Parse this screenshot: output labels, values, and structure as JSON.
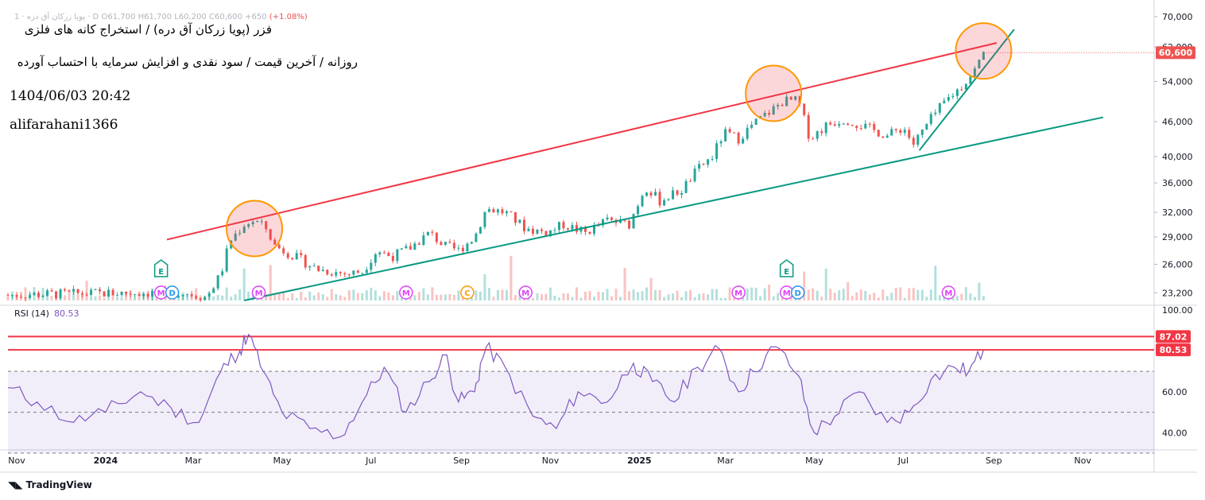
{
  "header": {
    "ticker_line": "1 · پویا زرکان آق دره · D",
    "ohlc": "O61,700  H61,700  L60,200  C60,600  +650",
    "change": "(+1.08%)",
    "title": "فزر (پویا زرکان آق دره) / استخراج کانه های فلزی",
    "subtitle": "روزانه / آخرین قیمت / سود نقدی و افزایش سرمایه با احتساب آورده",
    "datetime": "1404/06/03 20:42",
    "author": "alifarahani1366"
  },
  "rsi": {
    "label": "RSI (14)",
    "value": "80.53"
  },
  "branding": {
    "logo_text": "TradingView"
  },
  "colors": {
    "up": "#26a69a",
    "down": "#ef5350",
    "rsi": "#7e57c2",
    "resistance": "#f23645",
    "support": "#089981",
    "circle": "#ff9800"
  },
  "chart_data": [
    {
      "type": "candlestick",
      "title": "فزر (پویا زرکان آق دره) / استخراج کانه های فلزی",
      "x_axis": {
        "type": "date",
        "ticks": [
          "Nov",
          "2024",
          "Mar",
          "May",
          "Jul",
          "Sep",
          "Nov",
          "2025",
          "Mar",
          "May",
          "Jul",
          "Sep",
          "Nov"
        ],
        "range": [
          "2023-10-26",
          "2025-12-20"
        ]
      },
      "y_axis": {
        "scale": "log",
        "ticks": [
          23200,
          26000,
          29000,
          32000,
          36000,
          40000,
          46000,
          54000,
          62000,
          70000
        ],
        "range": [
          22500,
          72000
        ]
      },
      "last_price": 60600,
      "last_price_label": "60,600",
      "ohlc_last": {
        "open": 61700,
        "high": 61700,
        "low": 60200,
        "close": 60600,
        "change": 650,
        "change_pct": 1.08
      },
      "close_path": [
        [
          "2023-10-26",
          23000
        ],
        [
          "2023-12-01",
          23100
        ],
        [
          "2024-01-15",
          23200
        ],
        [
          "2024-02-25",
          23200
        ],
        [
          "2024-03-10",
          22800
        ],
        [
          "2024-03-20",
          25000
        ],
        [
          "2024-03-26",
          28500
        ],
        [
          "2024-04-05",
          30500
        ],
        [
          "2024-04-12",
          31000
        ],
        [
          "2024-04-20",
          30000
        ],
        [
          "2024-04-26",
          28000
        ],
        [
          "2024-05-10",
          26800
        ],
        [
          "2024-05-25",
          25500
        ],
        [
          "2024-06-15",
          25000
        ],
        [
          "2024-06-25",
          25300
        ],
        [
          "2024-07-05",
          27500
        ],
        [
          "2024-07-15",
          26800
        ],
        [
          "2024-07-28",
          27800
        ],
        [
          "2024-08-10",
          29500
        ],
        [
          "2024-08-20",
          28000
        ],
        [
          "2024-08-30",
          27500
        ],
        [
          "2024-09-10",
          29000
        ],
        [
          "2024-09-18",
          32500
        ],
        [
          "2024-10-01",
          32000
        ],
        [
          "2024-10-15",
          30000
        ],
        [
          "2024-10-30",
          29500
        ],
        [
          "2024-11-10",
          30500
        ],
        [
          "2024-11-25",
          29500
        ],
        [
          "2024-12-10",
          31000
        ],
        [
          "2024-12-25",
          30500
        ],
        [
          "2025-01-05",
          35500
        ],
        [
          "2025-01-15",
          33500
        ],
        [
          "2025-01-30",
          35000
        ],
        [
          "2025-02-10",
          38000
        ],
        [
          "2025-02-20",
          40000
        ],
        [
          "2025-02-28",
          44000
        ],
        [
          "2025-03-10",
          43000
        ],
        [
          "2025-03-20",
          45500
        ],
        [
          "2025-04-01",
          48000
        ],
        [
          "2025-04-10",
          50000
        ],
        [
          "2025-04-20",
          50000
        ],
        [
          "2025-04-28",
          43000
        ],
        [
          "2025-05-10",
          45500
        ],
        [
          "2025-05-22",
          46500
        ],
        [
          "2025-06-05",
          45000
        ],
        [
          "2025-06-20",
          43500
        ],
        [
          "2025-07-01",
          45000
        ],
        [
          "2025-07-08",
          42000
        ],
        [
          "2025-07-20",
          46500
        ],
        [
          "2025-07-30",
          50000
        ],
        [
          "2025-08-10",
          53000
        ],
        [
          "2025-08-20",
          57000
        ],
        [
          "2025-08-25",
          60600
        ]
      ],
      "volume_scale": "relative",
      "trendlines": [
        {
          "name": "resistance",
          "points": [
            [
              "2024-02-12",
              28700
            ],
            [
              "2025-09-03",
              63000
            ]
          ]
        },
        {
          "name": "support",
          "points": [
            [
              "2024-04-05",
              22500
            ],
            [
              "2025-11-15",
              46800
            ]
          ]
        },
        {
          "name": "short-term support",
          "points": [
            [
              "2025-07-12",
              41000
            ],
            [
              "2025-09-15",
              66500
            ]
          ]
        }
      ],
      "highlight_circles": [
        {
          "date": "2024-04-12",
          "price": 30000
        },
        {
          "date": "2025-04-03",
          "price": 51500
        },
        {
          "date": "2025-08-25",
          "price": 61000
        }
      ],
      "event_markers": [
        {
          "date": "2024-02-08",
          "labels": [
            "M",
            "D"
          ]
        },
        {
          "date": "2024-02-08",
          "labels": [
            "E"
          ]
        },
        {
          "date": "2024-04-15",
          "labels": [
            "M"
          ]
        },
        {
          "date": "2024-07-25",
          "labels": [
            "M"
          ]
        },
        {
          "date": "2024-09-05",
          "labels": [
            "C"
          ]
        },
        {
          "date": "2024-10-15",
          "labels": [
            "M"
          ]
        },
        {
          "date": "2025-03-10",
          "labels": [
            "M"
          ]
        },
        {
          "date": "2025-04-12",
          "labels": [
            "M",
            "D"
          ]
        },
        {
          "date": "2025-04-12",
          "labels": [
            "E"
          ]
        },
        {
          "date": "2025-08-01",
          "labels": [
            "M"
          ]
        }
      ]
    },
    {
      "type": "line",
      "title": "RSI (14)",
      "y_axis": {
        "ticks": [
          40,
          60,
          100
        ],
        "tick_labels": [
          "40.00",
          "60.00",
          "100.00"
        ],
        "range": [
          30,
          100
        ]
      },
      "levels": [
        30,
        50,
        70
      ],
      "band": [
        30,
        70
      ],
      "last_value": 80.53,
      "horizontal_lines": [
        87.02,
        80.53
      ],
      "points": [
        [
          "2023-10-26",
          62
        ],
        [
          "2023-11-15",
          55
        ],
        [
          "2023-12-10",
          45
        ],
        [
          "2024-01-01",
          50
        ],
        [
          "2024-01-25",
          60
        ],
        [
          "2024-02-15",
          52
        ],
        [
          "2024-03-05",
          45
        ],
        [
          "2024-03-20",
          70
        ],
        [
          "2024-04-02",
          80
        ],
        [
          "2024-04-08",
          88
        ],
        [
          "2024-04-18",
          70
        ],
        [
          "2024-05-01",
          50
        ],
        [
          "2024-05-20",
          42
        ],
        [
          "2024-06-10",
          38
        ],
        [
          "2024-06-25",
          55
        ],
        [
          "2024-07-10",
          72
        ],
        [
          "2024-07-25",
          50
        ],
        [
          "2024-08-10",
          65
        ],
        [
          "2024-08-22",
          78
        ],
        [
          "2024-08-30",
          55
        ],
        [
          "2024-09-10",
          60
        ],
        [
          "2024-09-18",
          82
        ],
        [
          "2024-10-01",
          72
        ],
        [
          "2024-10-20",
          48
        ],
        [
          "2024-11-05",
          42
        ],
        [
          "2024-11-20",
          60
        ],
        [
          "2024-12-10",
          55
        ],
        [
          "2024-12-28",
          74
        ],
        [
          "2025-01-10",
          65
        ],
        [
          "2025-01-25",
          55
        ],
        [
          "2025-02-10",
          72
        ],
        [
          "2025-02-25",
          81
        ],
        [
          "2025-03-10",
          60
        ],
        [
          "2025-03-20",
          70
        ],
        [
          "2025-04-05",
          82
        ],
        [
          "2025-04-20",
          68
        ],
        [
          "2025-05-01",
          40
        ],
        [
          "2025-05-15",
          48
        ],
        [
          "2025-06-01",
          60
        ],
        [
          "2025-06-20",
          45
        ],
        [
          "2025-07-05",
          50
        ],
        [
          "2025-07-20",
          66
        ],
        [
          "2025-08-05",
          72
        ],
        [
          "2025-08-15",
          70
        ],
        [
          "2025-08-25",
          80.5
        ]
      ]
    }
  ]
}
